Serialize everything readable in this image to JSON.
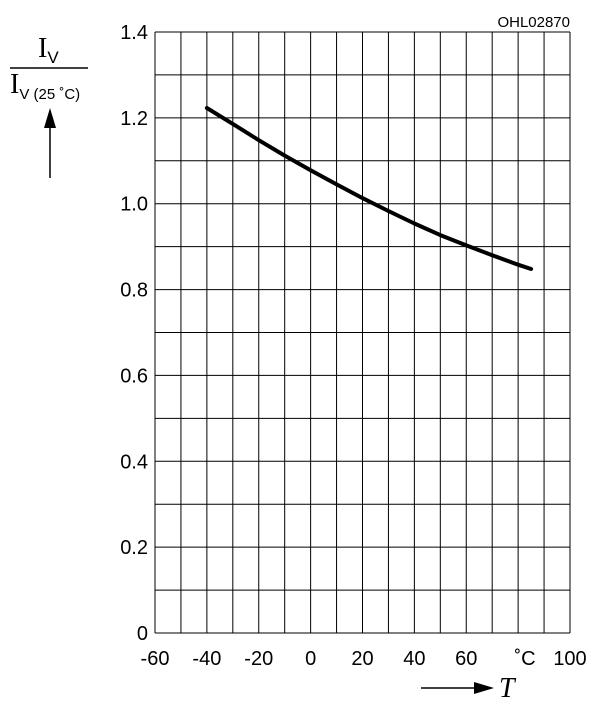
{
  "chart_data": {
    "type": "line",
    "figure_code": "OHL02870",
    "ylabel_numerator": "I",
    "ylabel_numerator_sub": "V",
    "ylabel_denominator": "I",
    "ylabel_denominator_sub": "V (25 ˚C)",
    "xlabel": "T",
    "x_unit": "˚C",
    "xlim": [
      -60,
      100
    ],
    "ylim": [
      0,
      1.4
    ],
    "x_ticks": [
      "-60",
      "-40",
      "-20",
      "0",
      "20",
      "40",
      "60",
      "100"
    ],
    "y_ticks": [
      "0",
      "0.2",
      "0.4",
      "0.6",
      "0.8",
      "1.0",
      "1.2",
      "1.4"
    ],
    "grid": true,
    "line_color": "#000000",
    "series": [
      {
        "x": [
          -40,
          -30,
          -20,
          -10,
          0,
          10,
          20,
          30,
          40,
          50,
          60,
          70,
          80,
          85
        ],
        "y": [
          1.223,
          1.186,
          1.148,
          1.112,
          1.078,
          1.045,
          1.013,
          0.983,
          0.954,
          0.927,
          0.903,
          0.88,
          0.858,
          0.848
        ]
      }
    ]
  }
}
